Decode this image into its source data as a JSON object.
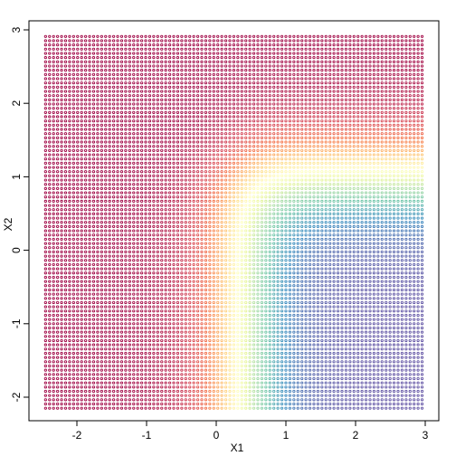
{
  "chart_data": {
    "type": "heatmap",
    "title": "",
    "xlabel": "X1",
    "ylabel": "X2",
    "xlim": [
      -2.45,
      3.0
    ],
    "ylim": [
      -2.15,
      2.92
    ],
    "x_ticks": [
      -2,
      -1,
      0,
      1,
      2,
      3
    ],
    "y_ticks": [
      -2,
      -1,
      0,
      1,
      2,
      3
    ],
    "x_tick_labels": [
      "-2",
      "-1",
      "0",
      "1",
      "2",
      "3"
    ],
    "y_tick_labels": [
      "-2",
      "-1",
      "0",
      "1",
      "2",
      "3"
    ],
    "grid": false,
    "point_style": "small open circles on a regular grid",
    "description_of_surface": {
      "boundary_x1": 0.3,
      "boundary_x2": 1.1,
      "low_region": "X1 > 0.3 and X2 < 1.1",
      "high_region": "elsewhere"
    },
    "palette": [
      "#9E0142",
      "#D53E4F",
      "#F46D43",
      "#FDAE61",
      "#FEE08B",
      "#FFFFBF",
      "#E6F598",
      "#ABDDA4",
      "#66C2A5",
      "#3288BD",
      "#5E4FA2"
    ],
    "palette_note": "Spectral: high values red/purple, boundary yellow, low values teal/blue"
  }
}
